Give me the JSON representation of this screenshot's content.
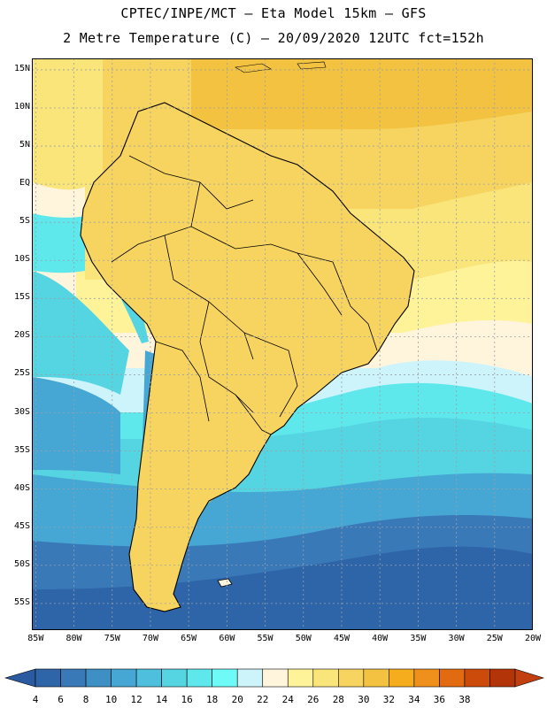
{
  "header": {
    "line1": "CPTEC/INPE/MCT –  Eta Model 15km – GFS",
    "line2": "2 Metre Temperature (C) – 20/09/2020 12UTC fct=152h"
  },
  "map": {
    "lat_labels": [
      "15N",
      "10N",
      "5N",
      "EQ",
      "5S",
      "10S",
      "15S",
      "20S",
      "25S",
      "30S",
      "35S",
      "40S",
      "45S",
      "50S",
      "55S"
    ],
    "lon_labels": [
      "85W",
      "80W",
      "75W",
      "70W",
      "65W",
      "60W",
      "55W",
      "50W",
      "45W",
      "40W",
      "35W",
      "30W",
      "25W",
      "20W"
    ],
    "lat_range": [
      16.5,
      -58.5
    ],
    "lon_range": [
      -85.5,
      -20.0
    ]
  },
  "colorbar": {
    "labels": [
      "4",
      "6",
      "8",
      "10",
      "12",
      "14",
      "16",
      "18",
      "20",
      "22",
      "24",
      "26",
      "28",
      "30",
      "32",
      "34",
      "36",
      "38"
    ],
    "colors": [
      "#2e64a8",
      "#3a79b8",
      "#3e90c4",
      "#46a7d4",
      "#4ebfdc",
      "#55d4e2",
      "#5ee8ec",
      "#6efaf6",
      "#cdf3fb",
      "#fff5dc",
      "#fff39a",
      "#fae57a",
      "#f7d460",
      "#f2c240",
      "#f5ad1e",
      "#ef8f1c",
      "#e26b12",
      "#cc4a0a",
      "#b4340a"
    ],
    "under_color": "#2a5aa0",
    "over_color": "#c24010"
  }
}
